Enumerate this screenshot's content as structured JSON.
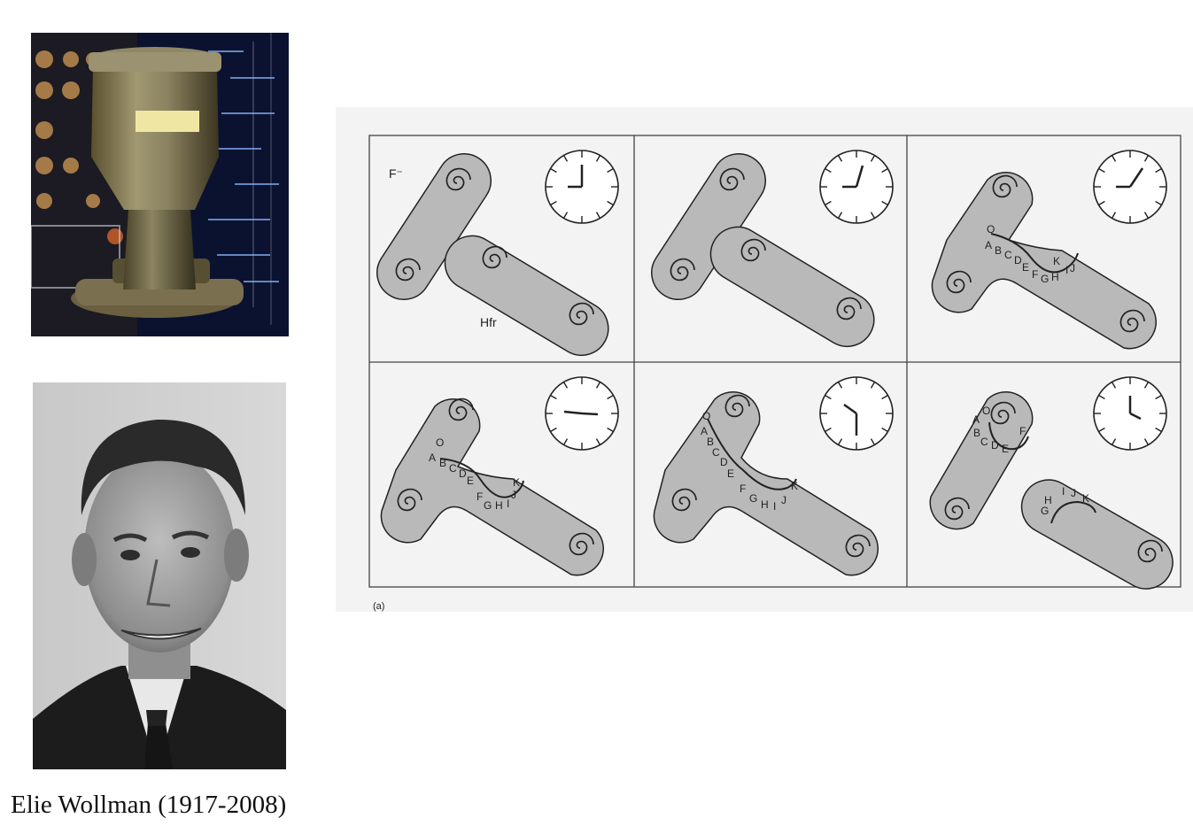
{
  "caption": "Elie Wollman (1917-2008)",
  "diagram": {
    "labels": {
      "f_minus": "F⁻",
      "hfr": "Hfr",
      "panel_tag": "(a)"
    },
    "panels": [
      {
        "id": 1,
        "transferred_genes": ""
      },
      {
        "id": 2,
        "transferred_genes": ""
      },
      {
        "id": 3,
        "transferred_genes": "O A B C D E F G H I J K"
      },
      {
        "id": 4,
        "transferred_genes": "O A B C D E F G H I J K"
      },
      {
        "id": 5,
        "transferred_genes": "O A B C D E F G H I J K"
      },
      {
        "id": 6,
        "transferred_genes": "O A B C D E F",
        "remaining_genes": "G H I J K"
      }
    ]
  }
}
